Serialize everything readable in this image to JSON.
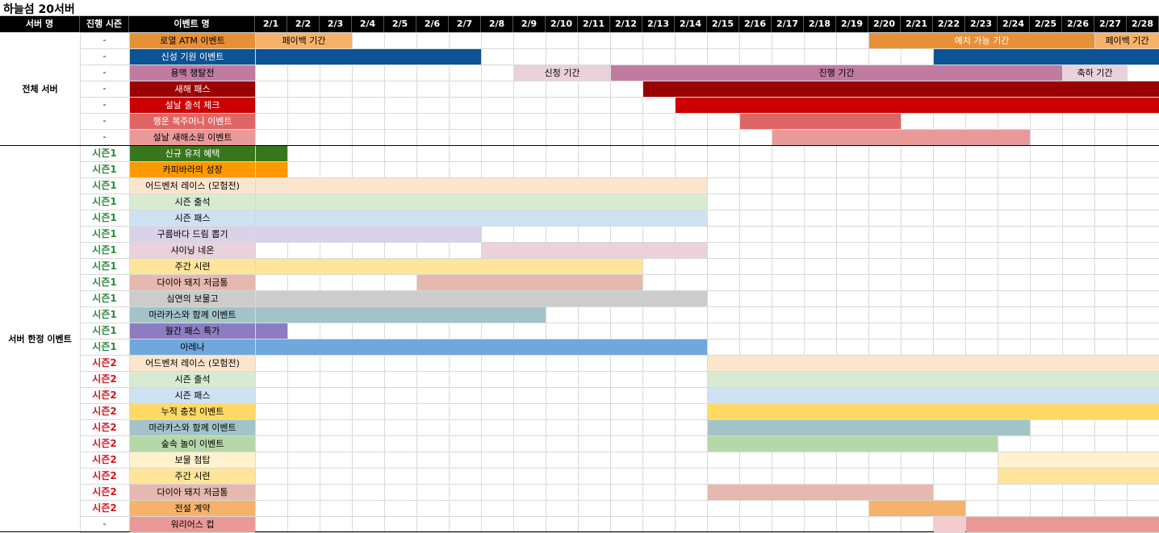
{
  "sheet": {
    "title": "하늘섬 20서버"
  },
  "headers": {
    "server": "서버 명",
    "season": "진행 시즌",
    "event": "이벤트 명"
  },
  "dates": [
    "2/1",
    "2/2",
    "2/3",
    "2/4",
    "2/5",
    "2/6",
    "2/7",
    "2/8",
    "2/9",
    "2/10",
    "2/11",
    "2/12",
    "2/13",
    "2/14",
    "2/15",
    "2/16",
    "2/17",
    "2/18",
    "2/19",
    "2/20",
    "2/21",
    "2/22",
    "2/23",
    "2/24",
    "2/25",
    "2/26",
    "2/27",
    "2/28"
  ],
  "groups": [
    {
      "label": "전체 서버",
      "first_row": 0,
      "row_count": 7
    },
    {
      "label": "서버 한정 이벤트",
      "first_row": 7,
      "row_count": 24
    }
  ],
  "colors": {
    "season1": "#2e8b3e",
    "season2": "#d9141d",
    "dash": "#000000"
  },
  "rows": [
    {
      "season": "-",
      "name": "로열 ATM 이벤트",
      "color": "#e69138",
      "text_color": "#000000",
      "bars": [
        {
          "start": 1,
          "end": 3,
          "color": "#f6b26b",
          "label": "페이백 기간",
          "text_color": "#000000"
        },
        {
          "start": 20,
          "end": 26,
          "color": "#e69138",
          "label": "예치 가능 기간",
          "text_color": "#ffffff"
        },
        {
          "start": 27,
          "end": 28,
          "color": "#f6b26b",
          "label": "페이백 기간",
          "text_color": "#000000"
        }
      ]
    },
    {
      "season": "-",
      "name": "신성 기원 이벤트",
      "color": "#0b5394",
      "text_color": "#ffffff",
      "bars": [
        {
          "start": 1,
          "end": 7,
          "color": "#0b5394"
        },
        {
          "start": 22,
          "end": 28,
          "color": "#0b5394"
        }
      ]
    },
    {
      "season": "-",
      "name": "용맥 쟁탈전",
      "color": "#c27ba0",
      "text_color": "#000000",
      "bars": [
        {
          "start": 9,
          "end": 11,
          "color": "#ead1dc",
          "label": "신청 기간",
          "text_color": "#000000"
        },
        {
          "start": 12,
          "end": 25,
          "color": "#c27ba0",
          "label": "진행 기간",
          "text_color": "#000000"
        },
        {
          "start": 26,
          "end": 27,
          "color": "#ead1dc",
          "label": "축하 기간",
          "text_color": "#000000"
        }
      ]
    },
    {
      "season": "-",
      "name": "새해 패스",
      "color": "#990000",
      "text_color": "#ffffff",
      "bars": [
        {
          "start": 13,
          "end": 28,
          "color": "#990000"
        }
      ]
    },
    {
      "season": "-",
      "name": "설날 출석 체크",
      "color": "#cc0000",
      "text_color": "#ffffff",
      "bars": [
        {
          "start": 14,
          "end": 28,
          "color": "#cc0000"
        }
      ]
    },
    {
      "season": "-",
      "name": "행운 복주머니 이벤트",
      "color": "#e06666",
      "text_color": "#ffffff",
      "bars": [
        {
          "start": 16,
          "end": 20,
          "color": "#e06666"
        }
      ]
    },
    {
      "season": "-",
      "name": "설날 새해소원 이벤트",
      "color": "#ea9999",
      "text_color": "#000000",
      "bars": [
        {
          "start": 17,
          "end": 24,
          "color": "#ea9999"
        }
      ]
    },
    {
      "season": "시즌1",
      "season_no": 1,
      "name": "신규 유저 혜택",
      "color": "#38761d",
      "text_color": "#ffffff",
      "bars": [
        {
          "start": 1,
          "end": 1,
          "color": "#38761d"
        }
      ]
    },
    {
      "season": "시즌1",
      "season_no": 1,
      "name": "카피바라의 성장",
      "color": "#ff9900",
      "text_color": "#000000",
      "bars": [
        {
          "start": 1,
          "end": 1,
          "color": "#ff9900"
        }
      ]
    },
    {
      "season": "시즌1",
      "season_no": 1,
      "name": "어드벤처 레이스 (모험전)",
      "color": "#fce5cd",
      "text_color": "#000000",
      "bars": [
        {
          "start": 1,
          "end": 14,
          "color": "#fce5cd"
        }
      ]
    },
    {
      "season": "시즌1",
      "season_no": 1,
      "name": "시즌 출석",
      "color": "#d9ead3",
      "text_color": "#000000",
      "bars": [
        {
          "start": 1,
          "end": 14,
          "color": "#d9ead3"
        }
      ]
    },
    {
      "season": "시즌1",
      "season_no": 1,
      "name": "시즌 패스",
      "color": "#cfe2f3",
      "text_color": "#000000",
      "bars": [
        {
          "start": 1,
          "end": 14,
          "color": "#cfe2f3"
        }
      ]
    },
    {
      "season": "시즌1",
      "season_no": 1,
      "name": "구름바다 드림 뽑기",
      "color": "#d9d2e9",
      "text_color": "#000000",
      "bars": [
        {
          "start": 1,
          "end": 7,
          "color": "#d9d2e9"
        }
      ]
    },
    {
      "season": "시즌1",
      "season_no": 1,
      "name": "샤이닝 네온",
      "color": "#ead1dc",
      "text_color": "#000000",
      "bars": [
        {
          "start": 8,
          "end": 14,
          "color": "#ead1dc"
        }
      ]
    },
    {
      "season": "시즌1",
      "season_no": 1,
      "name": "주간 시련",
      "color": "#ffe599",
      "text_color": "#000000",
      "bars": [
        {
          "start": 1,
          "end": 12,
          "color": "#ffe599"
        }
      ]
    },
    {
      "season": "시즌1",
      "season_no": 1,
      "name": "다이아 돼지 저금통",
      "color": "#e6b8af",
      "text_color": "#000000",
      "bars": [
        {
          "start": 6,
          "end": 12,
          "color": "#e6b8af"
        }
      ]
    },
    {
      "season": "시즌1",
      "season_no": 1,
      "name": "심연의 보물고",
      "color": "#cccccc",
      "text_color": "#000000",
      "bars": [
        {
          "start": 1,
          "end": 14,
          "color": "#cccccc"
        }
      ]
    },
    {
      "season": "시즌1",
      "season_no": 1,
      "name": "마라카스와 함께 이벤트",
      "color": "#a2c4c9",
      "text_color": "#000000",
      "bars": [
        {
          "start": 1,
          "end": 9,
          "color": "#a2c4c9"
        }
      ]
    },
    {
      "season": "시즌1",
      "season_no": 1,
      "name": "월간 패스 특가",
      "color": "#8e7cc3",
      "text_color": "#000000",
      "bars": [
        {
          "start": 1,
          "end": 1,
          "color": "#8e7cc3"
        }
      ]
    },
    {
      "season": "시즌1",
      "season_no": 1,
      "name": "아레나",
      "color": "#6fa8dc",
      "text_color": "#000000",
      "bars": [
        {
          "start": 1,
          "end": 14,
          "color": "#6fa8dc"
        }
      ]
    },
    {
      "season": "시즌2",
      "season_no": 2,
      "name": "어드벤처 레이스 (모험전)",
      "color": "#fce5cd",
      "text_color": "#000000",
      "bars": [
        {
          "start": 15,
          "end": 28,
          "color": "#fce5cd"
        }
      ]
    },
    {
      "season": "시즌2",
      "season_no": 2,
      "name": "시즌 출석",
      "color": "#d9ead3",
      "text_color": "#000000",
      "bars": [
        {
          "start": 15,
          "end": 28,
          "color": "#d9ead3"
        }
      ]
    },
    {
      "season": "시즌2",
      "season_no": 2,
      "name": "시즌 패스",
      "color": "#cfe2f3",
      "text_color": "#000000",
      "bars": [
        {
          "start": 15,
          "end": 28,
          "color": "#cfe2f3"
        }
      ]
    },
    {
      "season": "시즌2",
      "season_no": 2,
      "name": "누적 충전 이벤트",
      "color": "#ffd966",
      "text_color": "#000000",
      "bars": [
        {
          "start": 15,
          "end": 28,
          "color": "#ffd966"
        }
      ]
    },
    {
      "season": "시즌2",
      "season_no": 2,
      "name": "마라카스와 함께 이벤트",
      "color": "#a2c4c9",
      "text_color": "#000000",
      "bars": [
        {
          "start": 15,
          "end": 24,
          "color": "#a2c4c9"
        }
      ]
    },
    {
      "season": "시즌2",
      "season_no": 2,
      "name": "숲속 놀이 이벤트",
      "color": "#b6d7a8",
      "text_color": "#000000",
      "bars": [
        {
          "start": 15,
          "end": 23,
          "color": "#b6d7a8"
        }
      ]
    },
    {
      "season": "시즌2",
      "season_no": 2,
      "name": "보물 첨탑",
      "color": "#fff2cc",
      "text_color": "#000000",
      "bars": [
        {
          "start": 24,
          "end": 28,
          "color": "#fff2cc"
        }
      ]
    },
    {
      "season": "시즌2",
      "season_no": 2,
      "name": "주간 시련",
      "color": "#ffe599",
      "text_color": "#000000",
      "bars": [
        {
          "start": 24,
          "end": 28,
          "color": "#ffe599"
        }
      ]
    },
    {
      "season": "시즌2",
      "season_no": 2,
      "name": "다이아 돼지 저금통",
      "color": "#e6b8af",
      "text_color": "#000000",
      "bars": [
        {
          "start": 15,
          "end": 21,
          "color": "#e6b8af"
        }
      ]
    },
    {
      "season": "시즌2",
      "season_no": 2,
      "name": "전설 계약",
      "color": "#f6b26b",
      "text_color": "#000000",
      "bars": [
        {
          "start": 20,
          "end": 22,
          "color": "#f6b26b"
        }
      ]
    },
    {
      "season": "-",
      "name": "워리어스 컵",
      "color": "#ea9999",
      "text_color": "#000000",
      "bars": [
        {
          "start": 22,
          "end": 22,
          "color": "#f4cccc"
        },
        {
          "start": 23,
          "end": 28,
          "color": "#ea9999"
        }
      ]
    }
  ]
}
